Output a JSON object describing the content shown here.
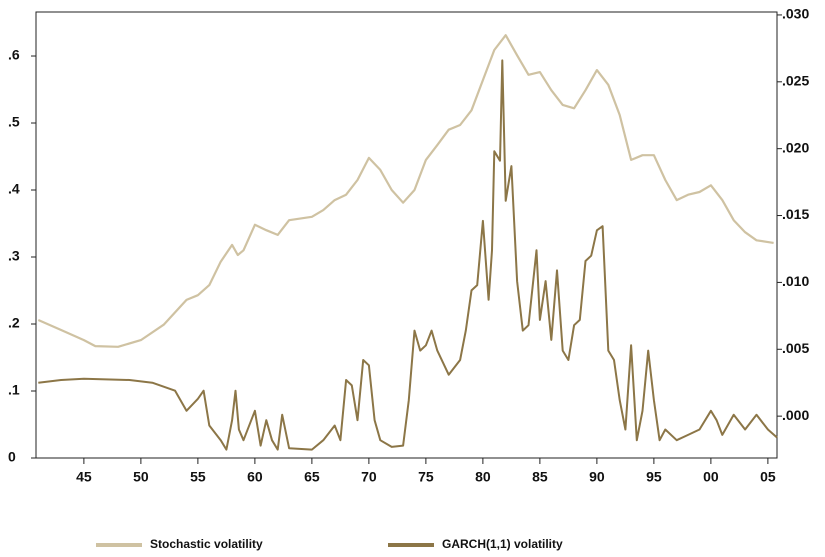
{
  "chart_data": {
    "type": "line",
    "xlim": [
      1940.8,
      2005.8
    ],
    "xticks": [
      {
        "value": 1945,
        "label": "45"
      },
      {
        "value": 1950,
        "label": "50"
      },
      {
        "value": 1955,
        "label": "55"
      },
      {
        "value": 1960,
        "label": "60"
      },
      {
        "value": 1965,
        "label": "65"
      },
      {
        "value": 1970,
        "label": "70"
      },
      {
        "value": 1975,
        "label": "75"
      },
      {
        "value": 1980,
        "label": "80"
      },
      {
        "value": 1985,
        "label": "85"
      },
      {
        "value": 1990,
        "label": "90"
      },
      {
        "value": 1995,
        "label": "95"
      },
      {
        "value": 2000,
        "label": "00"
      },
      {
        "value": 2005,
        "label": "05"
      }
    ],
    "ylim": [
      0,
      0.6657
    ],
    "yticks": [
      0,
      {
        "value": 0.1,
        "label": ".1"
      },
      {
        "value": 0.2,
        "label": ".2"
      },
      {
        "value": 0.3,
        "label": ".3"
      },
      {
        "value": 0.4,
        "label": ".4"
      },
      {
        "value": 0.5,
        "label": ".5"
      },
      {
        "value": 0.6,
        "label": ".6"
      }
    ],
    "y2lim": [
      -0.00313,
      0.03022
    ],
    "y2ticks": [
      {
        "value": 0,
        "label": ".000"
      },
      {
        "value": 0.005,
        "label": ".005"
      },
      {
        "value": 0.01,
        "label": ".010"
      },
      {
        "value": 0.015,
        "label": ".015"
      },
      {
        "value": 0.02,
        "label": ".020"
      },
      {
        "value": 0.025,
        "label": ".025"
      },
      {
        "value": 0.03,
        "label": ".030"
      }
    ],
    "series": [
      {
        "name": "Stochastic volatility",
        "color": "#cfc2a2",
        "x": [
          1941,
          1943,
          1945,
          1946,
          1948,
          1950,
          1952,
          1954,
          1955,
          1956,
          1957,
          1958,
          1958.5,
          1959,
          1960,
          1961,
          1962,
          1963,
          1965,
          1966,
          1967,
          1968,
          1969,
          1970,
          1971,
          1972,
          1973,
          1974,
          1975,
          1976,
          1977,
          1978,
          1979,
          1980,
          1981,
          1982,
          1983,
          1984,
          1985,
          1986,
          1987,
          1988,
          1989,
          1990,
          1991,
          1992,
          1993,
          1994,
          1995,
          1996,
          1997,
          1998,
          1999,
          2000,
          2001,
          2002,
          2003,
          2004,
          2005.5
        ],
        "values": [
          0.206,
          0.191,
          0.176,
          0.167,
          0.166,
          0.176,
          0.199,
          0.236,
          0.243,
          0.258,
          0.293,
          0.318,
          0.303,
          0.31,
          0.348,
          0.34,
          0.333,
          0.355,
          0.36,
          0.37,
          0.385,
          0.393,
          0.415,
          0.448,
          0.43,
          0.4,
          0.381,
          0.4,
          0.445,
          0.467,
          0.49,
          0.497,
          0.519,
          0.564,
          0.609,
          0.631,
          0.601,
          0.572,
          0.576,
          0.549,
          0.527,
          0.522,
          0.549,
          0.579,
          0.557,
          0.512,
          0.445,
          0.452,
          0.452,
          0.415,
          0.385,
          0.393,
          0.397,
          0.407,
          0.385,
          0.355,
          0.337,
          0.325,
          0.321
        ]
      },
      {
        "name": "GARCH(1,1) volatility",
        "color": "#8c7647",
        "axis": "y2",
        "x": [
          1941,
          1943,
          1945,
          1949,
          1951,
          1953,
          1954,
          1955,
          1955.5,
          1956,
          1957,
          1957.5,
          1958,
          1958.3,
          1958.6,
          1959,
          1960,
          1960.5,
          1961,
          1961.5,
          1962,
          1962.4,
          1963,
          1965,
          1966,
          1967,
          1967.5,
          1968,
          1968.5,
          1969,
          1969.5,
          1970,
          1970.5,
          1971,
          1972,
          1973,
          1973.5,
          1974,
          1974.5,
          1975,
          1975.5,
          1976,
          1977,
          1978,
          1978.5,
          1979,
          1979.5,
          1980,
          1980.5,
          1980.8,
          1981,
          1981.5,
          1981.7,
          1982,
          1982.5,
          1983,
          1983.5,
          1984,
          1984.7,
          1985,
          1985.5,
          1986,
          1986.5,
          1987,
          1987.5,
          1988,
          1988.5,
          1989,
          1989.5,
          1990,
          1990.5,
          1991,
          1991.5,
          1992,
          1992.5,
          1993,
          1993.5,
          1994,
          1994.5,
          1995,
          1995.5,
          1996,
          1997,
          1998,
          1999,
          2000,
          2000.5,
          2001,
          2002,
          2003,
          2004,
          2005,
          2005.8
        ],
        "values": [
          0.0025,
          0.0027,
          0.0028,
          0.0027,
          0.0025,
          0.0019,
          0.0004,
          0.0013,
          0.0019,
          -0.0007,
          -0.0018,
          -0.0025,
          -0.0003,
          0.0019,
          -0.001,
          -0.0018,
          0.0004,
          -0.0022,
          -0.0003,
          -0.0018,
          -0.0025,
          0.0001,
          -0.0024,
          -0.0025,
          -0.0018,
          -0.0007,
          -0.0018,
          0.0027,
          0.0023,
          -0.0003,
          0.0042,
          0.0038,
          -0.0003,
          -0.0018,
          -0.0023,
          -0.0022,
          0.0012,
          0.0064,
          0.0049,
          0.0053,
          0.0064,
          0.0049,
          0.0031,
          0.0042,
          0.0064,
          0.0094,
          0.0098,
          0.0146,
          0.0087,
          0.0124,
          0.0198,
          0.0191,
          0.0266,
          0.0161,
          0.0187,
          0.0101,
          0.0064,
          0.0068,
          0.0124,
          0.0072,
          0.0101,
          0.0057,
          0.0109,
          0.0049,
          0.0042,
          0.0068,
          0.0072,
          0.0116,
          0.012,
          0.0139,
          0.0142,
          0.0049,
          0.0042,
          0.0012,
          -0.001,
          0.0053,
          -0.0018,
          0.0004,
          0.0049,
          0.0012,
          -0.0018,
          -0.001,
          -0.0018,
          -0.0014,
          -0.001,
          0.0004,
          -0.0003,
          -0.0014,
          0.0001,
          -0.001,
          0.0001,
          -0.001,
          -0.0016
        ]
      }
    ]
  }
}
